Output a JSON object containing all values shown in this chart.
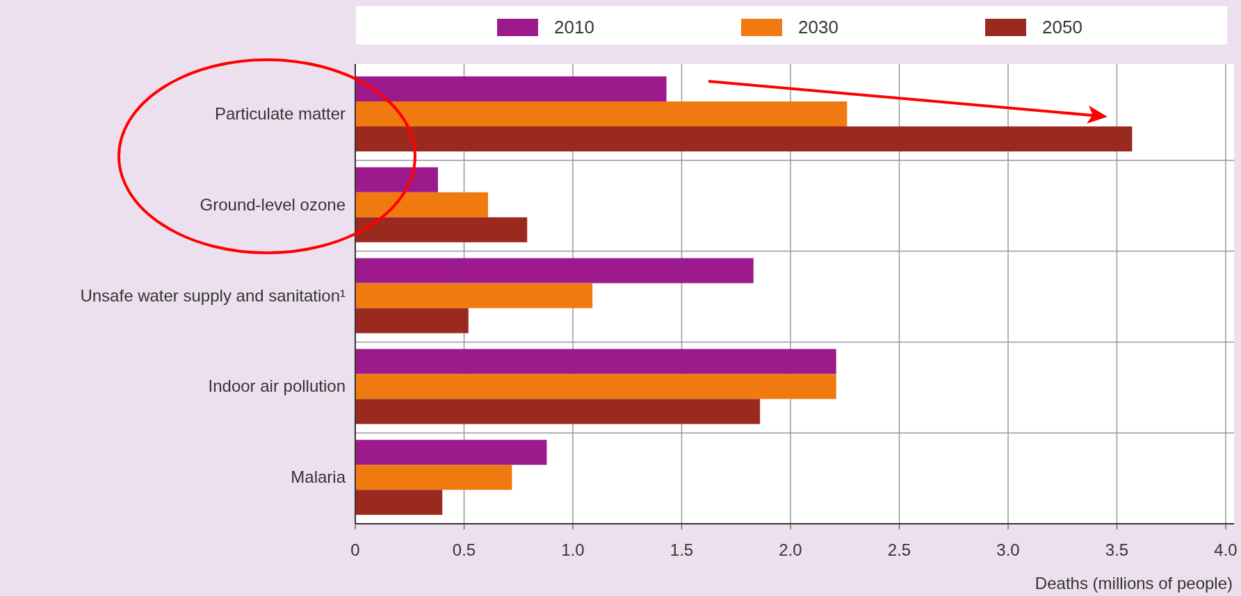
{
  "chart_data": {
    "type": "bar",
    "orientation": "horizontal",
    "categories": [
      "Particulate matter",
      "Ground-level ozone",
      "Unsafe water supply and sanitation¹",
      "Indoor air pollution",
      "Malaria"
    ],
    "series": [
      {
        "name": "2010",
        "color": "#9c1a8c",
        "values": [
          1.43,
          0.38,
          1.83,
          2.21,
          0.88
        ]
      },
      {
        "name": "2030",
        "color": "#f07a10",
        "values": [
          2.26,
          0.61,
          1.09,
          2.21,
          0.72
        ]
      },
      {
        "name": "2050",
        "color": "#9a2a20",
        "values": [
          3.57,
          0.79,
          0.52,
          1.86,
          0.4
        ]
      }
    ],
    "xlim": [
      0,
      4
    ],
    "xticks": [
      0,
      {
        "value": 0.5,
        "label": "0.5"
      },
      {
        "value": 1,
        "label": "1.0"
      },
      {
        "value": 1.5,
        "label": "1.5"
      },
      {
        "value": 2,
        "label": "2.0"
      },
      {
        "value": 2.5,
        "label": "2.5"
      },
      {
        "value": 3,
        "label": "3.0"
      },
      {
        "value": 3.5,
        "label": "3.5"
      },
      {
        "value": 4,
        "label": "4.0"
      }
    ],
    "xlabel": "Deaths (millions of people)",
    "grid": true,
    "legend": "top"
  }
}
